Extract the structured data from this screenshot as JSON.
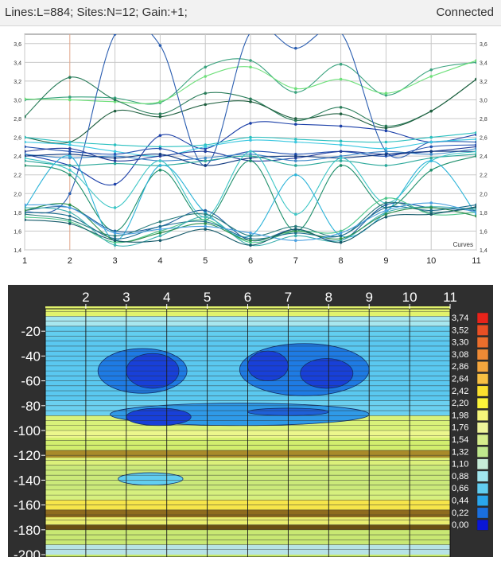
{
  "status": {
    "summary": "Lines:L=884;  Sites:N=12;  Gain:+1;",
    "connection": "Connected"
  },
  "curves_chart": {
    "corner_label": "Curves",
    "x_ticks": [
      "1",
      "2",
      "3",
      "4",
      "5",
      "6",
      "7",
      "8",
      "9",
      "10",
      "11"
    ],
    "y_ticks": [
      "1,4",
      "1,6",
      "1,8",
      "2,0",
      "2,2",
      "2,4",
      "2,6",
      "2,8",
      "3,0",
      "3,2",
      "3,4",
      "3,6"
    ]
  },
  "contour_chart": {
    "x_ticks": [
      "2",
      "3",
      "4",
      "5",
      "6",
      "7",
      "8",
      "9",
      "10",
      "11"
    ],
    "y_ticks": [
      "-20",
      "-40",
      "-60",
      "-80",
      "-100",
      "-120",
      "-140",
      "-160",
      "-180",
      "-200"
    ],
    "legend": [
      "3,74",
      "3,52",
      "3,30",
      "3,08",
      "2,86",
      "2,64",
      "2,42",
      "2,20",
      "1,98",
      "1,76",
      "1,54",
      "1,32",
      "1,10",
      "0,88",
      "0,66",
      "0,44",
      "0,22",
      "0,00"
    ],
    "legend_colors": [
      "#e8231a",
      "#ea4f24",
      "#eb6e2c",
      "#ee8a35",
      "#f4a63d",
      "#f8c043",
      "#fbe12e",
      "#fbf43a",
      "#f6f67a",
      "#eef59a",
      "#d6ee8c",
      "#bfe88d",
      "#c7ecd8",
      "#a2e6ee",
      "#61cdf0",
      "#2aa6ec",
      "#1a6fde",
      "#0a16d6"
    ]
  },
  "chart_data": {
    "type": "line",
    "title": "",
    "xlabel": "",
    "ylabel": "",
    "x": [
      1,
      2,
      3,
      4,
      5,
      6,
      7,
      8,
      9,
      10,
      11
    ],
    "ylim": [
      1.4,
      3.7
    ],
    "series": [
      {
        "color": "#3aa37e",
        "values": [
          3.0,
          3.03,
          3.02,
          2.97,
          3.35,
          3.42,
          3.08,
          3.38,
          3.05,
          3.32,
          3.4
        ]
      },
      {
        "color": "#6ee07a",
        "values": [
          3.01,
          3.0,
          2.98,
          2.98,
          3.25,
          3.35,
          3.12,
          3.22,
          3.07,
          3.25,
          3.42
        ]
      },
      {
        "color": "#2a7d5a",
        "values": [
          2.82,
          3.24,
          3.0,
          2.85,
          3.07,
          3.01,
          2.78,
          2.92,
          2.72,
          2.88,
          3.22
        ]
      },
      {
        "color": "#1f5f3f",
        "values": [
          2.6,
          2.55,
          2.88,
          2.82,
          2.95,
          2.98,
          2.8,
          2.85,
          2.7,
          2.88,
          3.22
        ]
      },
      {
        "color": "#2a5db0",
        "values": [
          1.8,
          2.0,
          3.7,
          3.58,
          2.3,
          3.72,
          3.55,
          3.72,
          2.45,
          2.55,
          2.55
        ]
      },
      {
        "color": "#1b3fa8",
        "values": [
          2.42,
          2.3,
          2.1,
          2.62,
          2.48,
          2.75,
          2.74,
          2.72,
          2.67,
          2.55,
          2.63
        ]
      },
      {
        "color": "#2ac0c0",
        "values": [
          2.6,
          2.55,
          2.52,
          2.5,
          2.52,
          2.6,
          2.58,
          2.56,
          2.55,
          2.6,
          2.65
        ]
      },
      {
        "color": "#38c7e0",
        "values": [
          2.55,
          2.52,
          2.45,
          2.4,
          2.5,
          2.57,
          2.55,
          2.52,
          2.48,
          2.55,
          2.58
        ]
      },
      {
        "color": "#1f4fb0",
        "values": [
          2.5,
          2.45,
          2.42,
          2.48,
          2.35,
          2.45,
          2.42,
          2.45,
          2.4,
          2.5,
          2.52
        ]
      },
      {
        "color": "#223c99",
        "values": [
          2.45,
          2.48,
          2.35,
          2.4,
          2.45,
          2.35,
          2.38,
          2.45,
          2.42,
          2.45,
          2.5
        ]
      },
      {
        "color": "#3f88c8",
        "values": [
          2.42,
          2.38,
          2.4,
          2.35,
          2.38,
          2.42,
          2.35,
          2.4,
          2.45,
          2.42,
          2.48
        ]
      },
      {
        "color": "#123a80",
        "values": [
          2.4,
          2.42,
          2.38,
          2.42,
          2.3,
          2.38,
          2.4,
          2.38,
          2.42,
          2.45,
          2.45
        ]
      },
      {
        "color": "#2aa89a",
        "values": [
          2.35,
          2.3,
          2.32,
          2.3,
          2.35,
          2.4,
          2.3,
          2.35,
          2.3,
          2.38,
          2.42
        ]
      },
      {
        "color": "#3ec6c6",
        "values": [
          2.38,
          2.25,
          1.85,
          2.35,
          1.75,
          2.45,
          1.78,
          2.38,
          1.9,
          2.35,
          2.45
        ]
      },
      {
        "color": "#1d8f6a",
        "values": [
          2.3,
          2.2,
          1.6,
          2.25,
          1.72,
          2.35,
          1.6,
          2.3,
          1.85,
          2.25,
          2.4
        ]
      },
      {
        "color": "#2bb3d8",
        "values": [
          1.85,
          2.4,
          1.5,
          2.3,
          1.8,
          1.55,
          2.2,
          1.55,
          1.8,
          2.35,
          1.78
        ]
      },
      {
        "color": "#1c5f9e",
        "values": [
          1.82,
          1.85,
          1.6,
          1.65,
          1.82,
          1.5,
          1.62,
          1.5,
          1.88,
          1.85,
          1.82
        ]
      },
      {
        "color": "#2a7d7d",
        "values": [
          1.78,
          1.72,
          1.55,
          1.7,
          1.78,
          1.55,
          1.65,
          1.55,
          1.9,
          1.8,
          1.85
        ]
      },
      {
        "color": "#4cc68a",
        "values": [
          1.75,
          1.7,
          1.48,
          1.6,
          1.72,
          1.48,
          1.6,
          1.6,
          1.95,
          1.78,
          1.8
        ]
      },
      {
        "color": "#1e6e8e",
        "values": [
          1.8,
          1.76,
          1.52,
          1.65,
          1.7,
          1.52,
          1.58,
          1.55,
          1.85,
          1.82,
          1.88
        ]
      },
      {
        "color": "#3fb0b0",
        "values": [
          1.85,
          1.8,
          1.45,
          1.55,
          1.75,
          1.45,
          1.55,
          1.5,
          1.8,
          1.86,
          1.83
        ]
      },
      {
        "color": "#2e8f4e",
        "values": [
          1.82,
          1.88,
          1.5,
          1.58,
          1.68,
          1.5,
          1.6,
          1.52,
          1.78,
          1.85,
          1.76
        ]
      },
      {
        "color": "#4aa0e0",
        "values": [
          1.88,
          1.85,
          1.58,
          1.62,
          1.65,
          1.58,
          1.5,
          1.58,
          1.82,
          1.9,
          1.8
        ]
      },
      {
        "color": "#155a6a",
        "values": [
          1.72,
          1.68,
          1.5,
          1.5,
          1.62,
          1.45,
          1.62,
          1.48,
          1.75,
          1.78,
          1.86
        ]
      }
    ]
  }
}
